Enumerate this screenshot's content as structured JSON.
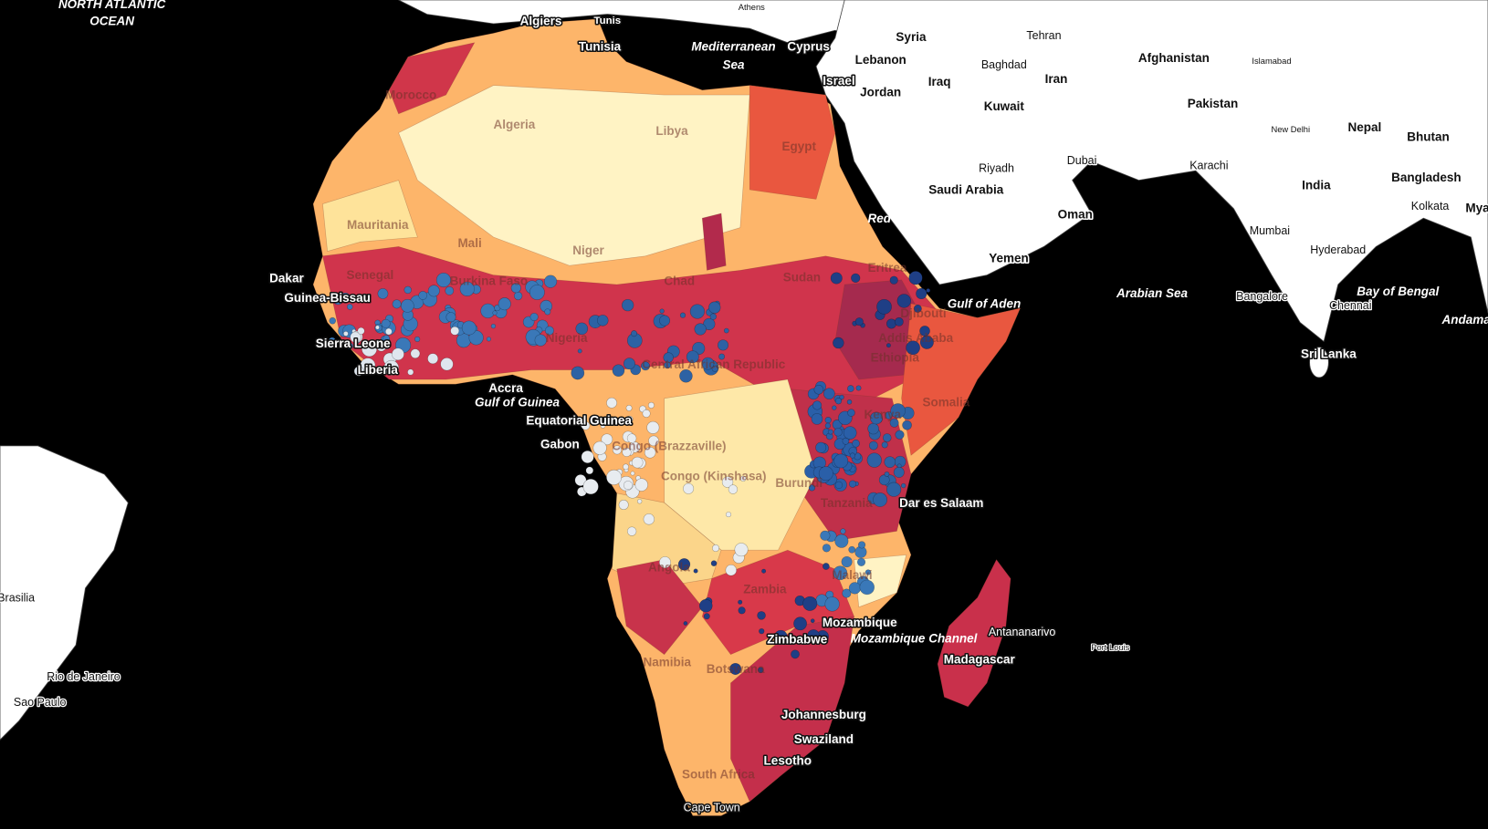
{
  "labels": [
    "NORTH ATLANTIC",
    "OCEAN",
    "Algiers",
    "Tunis",
    "Athens",
    "Tunisia",
    "Mediterranean",
    "Sea",
    "Cyprus",
    "Syria",
    "Tehran",
    "Afghanistan",
    "Islamabad",
    "Lebanon",
    "Baghdad",
    "Israel",
    "Jordan",
    "Iraq",
    "Iran",
    "Kuwait",
    "Pakistan",
    "Nepal",
    "Bhutan",
    "New Delhi",
    "Morocco",
    "Algeria",
    "Libya",
    "Egypt",
    "Karachi",
    "Riyadh",
    "Dubai",
    "India",
    "Bangladesh",
    "Saudi Arabia",
    "Kolkata",
    "Mya",
    "Red Sea",
    "Oman",
    "Mauritania",
    "Mumbai",
    "Mali",
    "Niger",
    "Hyderabad",
    "Yemen",
    "Dakar",
    "Senegal",
    "Chad",
    "Sudan",
    "Eritrea",
    "Arabian Sea",
    "Bangalore",
    "Chennai",
    "Bay of Bengal",
    "Guinea-Bissau",
    "Burkina Faso",
    "Gulf of Aden",
    "Djibouti",
    "Andama",
    "Nigeria",
    "Sierra Leone",
    "Addis Ababa",
    "Central African Republic",
    "Ethiopia",
    "Sri Lanka",
    "Liberia",
    "Accra",
    "Gulf of Guinea",
    "Somalia",
    "Kenya",
    "Equatorial Guinea",
    "Gabon",
    "Congo (Brazzaville)",
    "Congo (Kinshasa)",
    "Burundi",
    "Dar es Salaam",
    "Tanzania",
    "Angola",
    "Malawi",
    "Zambia",
    "Brasilia",
    "Mozambique",
    "Antananarivo",
    "Mozambique Channel",
    "Port Louis",
    "Zimbabwe",
    "Madagascar",
    "Namibia",
    "Botswana",
    "Rio de Janeiro",
    "Sao Paulo",
    "Johannesburg",
    "Swaziland",
    "Lesotho",
    "South Africa",
    "Cape Town"
  ]
}
